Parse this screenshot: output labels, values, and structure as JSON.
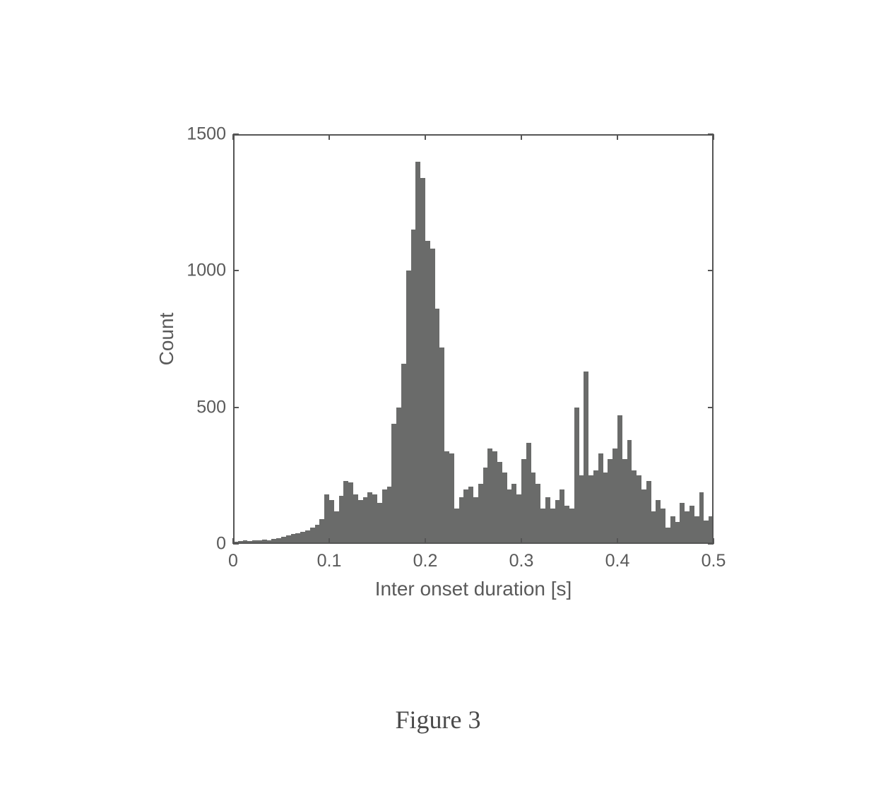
{
  "figure_caption": "Figure 3",
  "caption_fontsize": 36,
  "caption_font": "Times New Roman",
  "histogram": {
    "type": "histogram",
    "xlabel": "Inter onset duration [s]",
    "ylabel": "Count",
    "label_fontsize": 28,
    "tick_fontsize": 25,
    "xlim": [
      0,
      0.5
    ],
    "ylim": [
      0,
      1500
    ],
    "xticks": [
      0,
      0.1,
      0.2,
      0.3,
      0.4,
      0.5
    ],
    "yticks": [
      0,
      500,
      1000,
      1500
    ],
    "bar_color": "#6a6b6a",
    "axis_color": "#555555",
    "tick_color": "#555555",
    "text_color": "#5a5a5a",
    "background_color": "#ffffff",
    "bin_width": 0.005,
    "bin_centers": [
      0.0025,
      0.0075,
      0.0125,
      0.0175,
      0.0225,
      0.0275,
      0.0325,
      0.0375,
      0.0425,
      0.0475,
      0.0525,
      0.0575,
      0.0625,
      0.0675,
      0.0725,
      0.0775,
      0.0825,
      0.0875,
      0.0925,
      0.0975,
      0.1025,
      0.1075,
      0.1125,
      0.1175,
      0.1225,
      0.1275,
      0.1325,
      0.1375,
      0.1425,
      0.1475,
      0.1525,
      0.1575,
      0.1625,
      0.1675,
      0.1725,
      0.1775,
      0.1825,
      0.1875,
      0.1925,
      0.1975,
      0.2025,
      0.2075,
      0.2125,
      0.2175,
      0.2225,
      0.2275,
      0.2325,
      0.2375,
      0.2425,
      0.2475,
      0.2525,
      0.2575,
      0.2625,
      0.2675,
      0.2725,
      0.2775,
      0.2825,
      0.2875,
      0.2925,
      0.2975,
      0.3025,
      0.3075,
      0.3125,
      0.3175,
      0.3225,
      0.3275,
      0.3325,
      0.3375,
      0.3425,
      0.3475,
      0.3525,
      0.3575,
      0.3625,
      0.3675,
      0.3725,
      0.3775,
      0.3825,
      0.3875,
      0.3925,
      0.3975,
      0.4025,
      0.4075,
      0.4125,
      0.4175,
      0.4225,
      0.4275,
      0.4325,
      0.4375,
      0.4425,
      0.4475,
      0.4525,
      0.4575,
      0.4625,
      0.4675,
      0.4725,
      0.4775,
      0.4825,
      0.4875,
      0.4925,
      0.4975
    ],
    "counts": [
      8,
      10,
      12,
      10,
      14,
      12,
      15,
      14,
      18,
      20,
      25,
      30,
      35,
      40,
      45,
      50,
      60,
      70,
      90,
      180,
      160,
      120,
      175,
      230,
      225,
      180,
      160,
      170,
      190,
      180,
      150,
      200,
      210,
      440,
      500,
      660,
      1000,
      1150,
      1400,
      1340,
      1110,
      1080,
      860,
      720,
      340,
      330,
      130,
      170,
      200,
      210,
      170,
      220,
      280,
      350,
      340,
      300,
      260,
      200,
      220,
      180,
      310,
      370,
      260,
      220,
      130,
      170,
      130,
      160,
      200,
      140,
      130,
      500,
      250,
      630,
      250,
      270,
      330,
      260,
      310,
      350,
      470,
      310,
      380,
      270,
      250,
      200,
      230,
      120,
      160,
      130,
      60,
      100,
      80,
      150,
      120,
      140,
      100,
      190,
      85,
      100
    ],
    "axis_linewidth": 2,
    "tick_length_major": 8
  }
}
